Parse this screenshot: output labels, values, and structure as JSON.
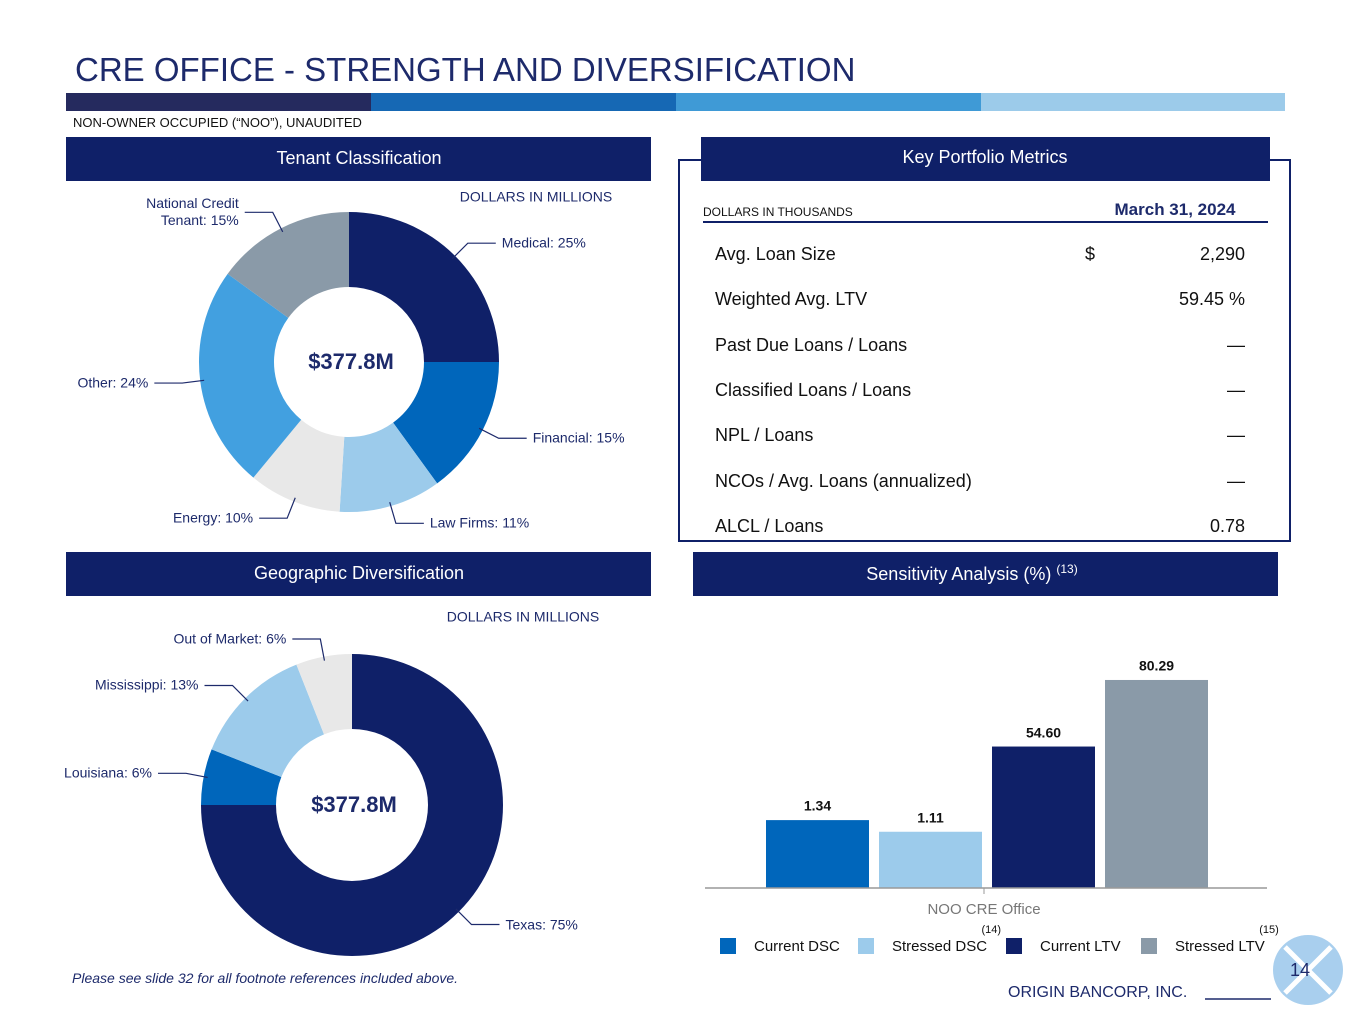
{
  "header": {
    "title": "CRE OFFICE - STRENGTH AND DIVERSIFICATION",
    "subtitle": "NON-OWNER OCCUPIED (“NOO”), UNAUDITED"
  },
  "chart_data": [
    {
      "type": "donut",
      "title": "Tenant Classification",
      "unit_note": "DOLLARS IN MILLIONS",
      "center_label": "$377.8M",
      "values": [
        25,
        15,
        11,
        10,
        24,
        15
      ],
      "value_labels": [
        "Medical: 25%",
        "Financial: 15%",
        "Law Firms: 11%",
        "Energy: 10%",
        "Other: 24%",
        "National Credit Tenant: 15%"
      ],
      "colors": [
        "#0f2068",
        "#0066bb",
        "#9ccbeb",
        "#e8e8e8",
        "#42a0e0",
        "#8a9aa8"
      ]
    },
    {
      "type": "donut",
      "title": "Geographic Diversification",
      "unit_note": "DOLLARS IN MILLIONS",
      "center_label": "$377.8M",
      "values": [
        75,
        6,
        13,
        6
      ],
      "value_labels": [
        "Texas: 75%",
        "Louisiana: 6%",
        "Mississippi: 13%",
        "Out of Market: 6%"
      ],
      "colors": [
        "#0f2068",
        "#0066bb",
        "#9ccbeb",
        "#e8e8e8"
      ]
    },
    {
      "type": "bar",
      "title": "Sensitivity Analysis (%)",
      "title_note": "(13)",
      "categories": [
        "NOO CRE Office"
      ],
      "ylim": [
        0,
        4.5
      ],
      "y2lim": [
        0,
        88
      ],
      "series": [
        {
          "name": "Current DSC",
          "color": "#0066bb",
          "values": [
            1.34
          ]
        },
        {
          "name": "Stressed DSC",
          "note": "(14)",
          "color": "#9ccbeb",
          "values": [
            1.11
          ]
        },
        {
          "name": "Current LTV",
          "color": "#0f2068",
          "values": [
            54.6
          ],
          "value_labels": [
            "54.60"
          ],
          "axis": "y2"
        },
        {
          "name": "Stressed LTV",
          "note": "(15)",
          "color": "#8a9aa8",
          "values": [
            80.29
          ],
          "axis": "y2"
        }
      ]
    }
  ],
  "metrics": {
    "title": "Key Portfolio Metrics",
    "unit_note": "DOLLARS IN THOUSANDS",
    "column": "March 31, 2024",
    "rows": [
      {
        "label": "Avg. Loan Size",
        "currency": "$",
        "value": "2,290"
      },
      {
        "label": "Weighted Avg. LTV",
        "value": "59.45 %"
      },
      {
        "label": "Past Due Loans / Loans",
        "value": "—"
      },
      {
        "label": "Classified Loans / Loans",
        "value": "—"
      },
      {
        "label": "NPL / Loans",
        "value": "—"
      },
      {
        "label": "NCOs / Avg. Loans (annualized)",
        "value": "—"
      },
      {
        "label": "ALCL / Loans",
        "value": "0.78"
      }
    ]
  },
  "footer": {
    "note": "Please see slide 32 for all footnote references included above.",
    "company": "ORIGIN BANCORP, INC.",
    "page": "14"
  }
}
